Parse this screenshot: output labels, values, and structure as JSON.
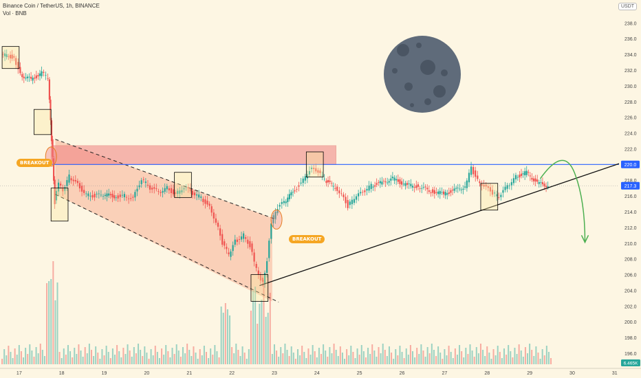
{
  "header": {
    "symbol": "Binance Coin / TetherUS, 1h, BINANCE",
    "volume_label": "Vol · BNB",
    "currency": "USDT"
  },
  "annotations": {
    "breakout_left": "BREAKOUT",
    "breakout_right": "BREAKOUT",
    "price_tag": "220.0",
    "price_tag2": "217.3",
    "volume_tag": "6.465K"
  },
  "colors": {
    "up": "#26a69a",
    "down": "#ef5350",
    "resistance_line": "#2962ff",
    "channel_fill": "#f8b195",
    "zone_fill": "#f08080",
    "box_stroke": "#000000",
    "arrow": "#4caf50",
    "moon": "#5f6b7a",
    "badge": "#f5a623"
  },
  "chart_data": {
    "type": "candlestick",
    "title": "Binance Coin / TetherUS, 1h, BINANCE",
    "y_ticks": [
      196.0,
      198.0,
      200.0,
      202.0,
      204.0,
      206.0,
      208.0,
      210.0,
      212.0,
      214.0,
      216.0,
      218.0,
      220.0,
      222.0,
      224.0,
      226.0,
      228.0,
      230.0,
      232.0,
      234.0,
      236.0,
      238.0
    ],
    "ylim": [
      194.6,
      239.6
    ],
    "x_ticks": [
      "17",
      "18",
      "19",
      "20",
      "21",
      "22",
      "23",
      "24",
      "25",
      "26",
      "27",
      "28",
      "29",
      "30",
      "31"
    ],
    "x_tick_days": [
      17,
      18,
      19,
      20,
      21,
      22,
      23,
      24,
      25,
      26,
      27,
      28,
      29,
      30,
      31
    ],
    "xlim": [
      16.55,
      31.1
    ],
    "resistance_level": 220.0,
    "close_approx": [
      [
        16.6,
        234.0
      ],
      [
        16.9,
        233.6
      ],
      [
        17.05,
        231.4
      ],
      [
        17.3,
        230.8
      ],
      [
        17.55,
        231.6
      ],
      [
        17.7,
        231.0
      ],
      [
        17.75,
        225.4
      ],
      [
        17.8,
        221.0
      ],
      [
        17.85,
        215.2
      ],
      [
        17.95,
        217.8
      ],
      [
        18.05,
        216.4
      ],
      [
        18.2,
        218.5
      ],
      [
        18.4,
        217.4
      ],
      [
        18.6,
        216.2
      ],
      [
        18.8,
        216.0
      ],
      [
        19.0,
        216.2
      ],
      [
        19.3,
        215.9
      ],
      [
        19.5,
        216.0
      ],
      [
        19.7,
        215.7
      ],
      [
        19.9,
        218.2
      ],
      [
        20.1,
        217.0
      ],
      [
        20.3,
        216.5
      ],
      [
        20.5,
        217.0
      ],
      [
        20.7,
        216.2
      ],
      [
        20.9,
        217.2
      ],
      [
        21.1,
        216.3
      ],
      [
        21.3,
        215.8
      ],
      [
        21.5,
        214.5
      ],
      [
        21.65,
        212.8
      ],
      [
        21.8,
        210.0
      ],
      [
        21.95,
        208.5
      ],
      [
        22.1,
        210.2
      ],
      [
        22.3,
        211.0
      ],
      [
        22.45,
        209.7
      ],
      [
        22.55,
        207.6
      ],
      [
        22.65,
        205.8
      ],
      [
        22.75,
        205.0
      ],
      [
        22.85,
        207.9
      ],
      [
        22.95,
        212.7
      ],
      [
        23.1,
        214.5
      ],
      [
        23.25,
        215.2
      ],
      [
        23.5,
        216.8
      ],
      [
        23.7,
        218.0
      ],
      [
        23.85,
        219.4
      ],
      [
        24.05,
        219.2
      ],
      [
        24.2,
        218.0
      ],
      [
        24.45,
        217.1
      ],
      [
        24.6,
        216.3
      ],
      [
        24.75,
        214.7
      ],
      [
        24.9,
        215.7
      ],
      [
        25.1,
        216.5
      ],
      [
        25.3,
        217.3
      ],
      [
        25.55,
        217.7
      ],
      [
        25.8,
        218.2
      ],
      [
        26.1,
        217.4
      ],
      [
        26.4,
        217.2
      ],
      [
        26.7,
        216.6
      ],
      [
        27.0,
        216.3
      ],
      [
        27.25,
        216.7
      ],
      [
        27.5,
        217.2
      ],
      [
        27.65,
        219.5
      ],
      [
        27.8,
        218.0
      ],
      [
        28.0,
        217.1
      ],
      [
        28.15,
        216.4
      ],
      [
        28.3,
        215.8
      ],
      [
        28.5,
        217.3
      ],
      [
        28.7,
        218.4
      ],
      [
        28.95,
        219.0
      ],
      [
        29.2,
        217.6
      ],
      [
        29.45,
        217.3
      ]
    ]
  }
}
